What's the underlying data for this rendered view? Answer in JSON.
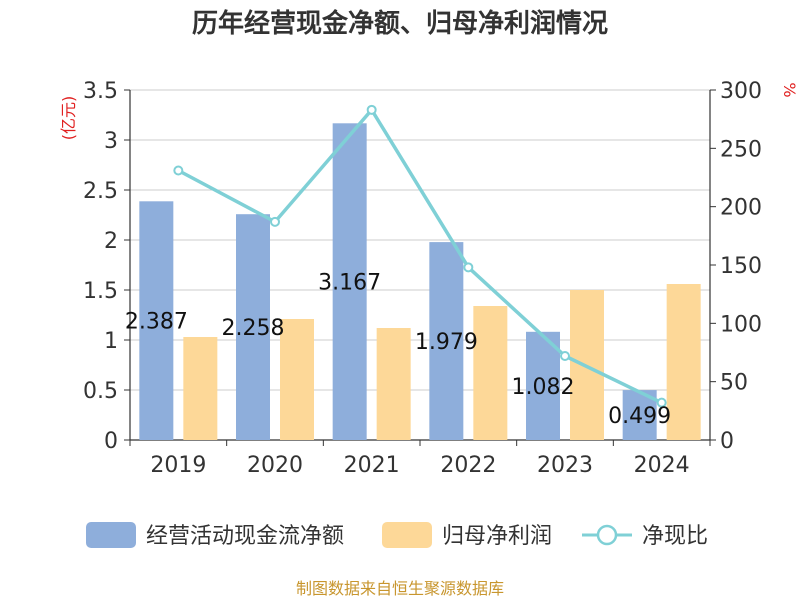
{
  "chart_data": {
    "type": "bar",
    "title": "历年经营现金净额、归母净利润情况",
    "categories": [
      "2019",
      "2020",
      "2021",
      "2022",
      "2023",
      "2024"
    ],
    "series": [
      {
        "name": "经营活动现金流净额",
        "type": "bar",
        "axis": "left",
        "color": "#8eaedb",
        "values": [
          2.387,
          2.258,
          3.167,
          1.979,
          1.082,
          0.499
        ],
        "labels": [
          "2.387",
          "2.258",
          "3.167",
          "1.979",
          "1.082",
          "0.499"
        ]
      },
      {
        "name": "归母净利润",
        "type": "bar",
        "axis": "left",
        "color": "#fdd898",
        "values": [
          1.03,
          1.21,
          1.12,
          1.34,
          1.5,
          1.56
        ]
      },
      {
        "name": "净现比",
        "type": "line",
        "axis": "right",
        "color": "#7fd0d6",
        "values": [
          231,
          187,
          283,
          148,
          72,
          32
        ]
      }
    ],
    "y_left": {
      "unit": "(亿元)",
      "min": 0,
      "max": 3.5,
      "ticks": [
        "0",
        "0.5",
        "1",
        "1.5",
        "2",
        "2.5",
        "3",
        "3.5"
      ]
    },
    "y_right": {
      "unit": "%",
      "min": 0,
      "max": 300,
      "ticks": [
        "0",
        "50",
        "100",
        "150",
        "200",
        "250",
        "300"
      ]
    },
    "grid": true,
    "legend_position": "bottom"
  },
  "source": "制图数据来自恒生聚源数据库"
}
